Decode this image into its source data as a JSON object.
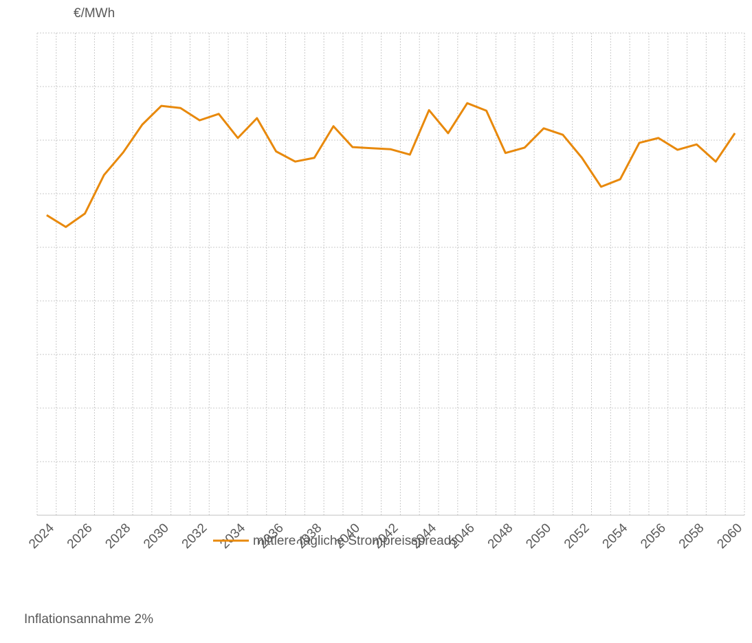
{
  "chart_data": {
    "type": "line",
    "y_label": "€/MWh",
    "categories": [
      "2024",
      null,
      "2026",
      null,
      "2028",
      null,
      "2030",
      null,
      "2032",
      null,
      "2034",
      null,
      "2036",
      null,
      "2038",
      null,
      "2040",
      null,
      "2042",
      null,
      "2044",
      null,
      "2046",
      null,
      "2048",
      null,
      "2050",
      null,
      "2052",
      null,
      "2054",
      null,
      "2056",
      null,
      "2058",
      null,
      "2060"
    ],
    "series": [
      {
        "name": "mittlere tägliche Strompreisspreads",
        "color": "#e8890c",
        "values": [
          56.0,
          53.8,
          56.3,
          63.5,
          67.7,
          72.9,
          76.4,
          76.0,
          73.7,
          74.9,
          70.4,
          74.1,
          67.9,
          66.0,
          66.7,
          72.6,
          68.7,
          68.5,
          68.3,
          67.3,
          75.6,
          71.3,
          76.9,
          75.5,
          67.6,
          68.6,
          72.2,
          71.0,
          66.7,
          61.3,
          62.7,
          69.5,
          70.4,
          68.2,
          69.2,
          66.0,
          71.3
        ]
      }
    ],
    "ylim": [
      0,
      90
    ],
    "yticks": [
      0,
      10,
      20,
      30,
      40,
      50,
      60,
      70,
      80,
      90
    ],
    "grid": true,
    "legend": "bottom",
    "note": "Inflationsannahme 2%"
  }
}
